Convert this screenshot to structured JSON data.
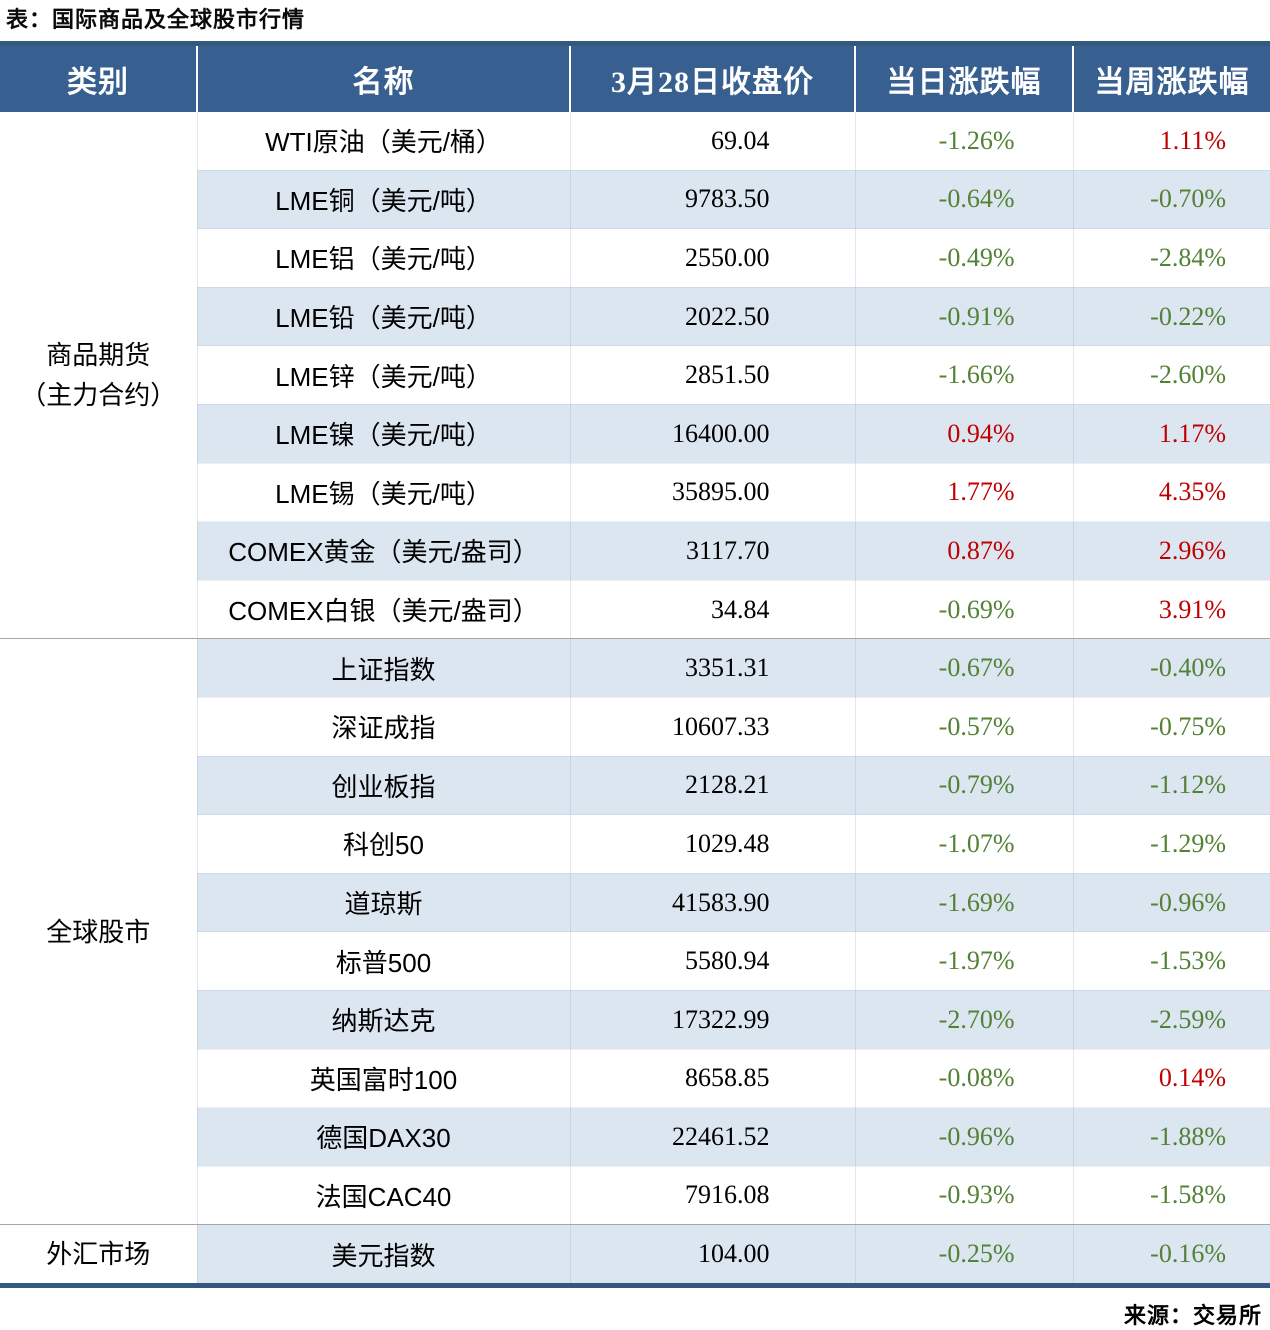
{
  "page": {
    "title": "表：国际商品及全球股市行情",
    "source": "来源：交易所"
  },
  "colors": {
    "header_bg": "#376091",
    "stripe": "#DCE6F1",
    "thick_border": "#33597F",
    "up_red": "#C00000",
    "down_green": "#538135"
  },
  "table": {
    "columns": [
      "类别",
      "名称",
      "3月28日收盘价",
      "当日涨跌幅",
      "当周涨跌幅"
    ],
    "sections": [
      {
        "category": "商品期货\n（主力合约）",
        "rows": [
          {
            "name": "WTI原油（美元/桶）",
            "close": "69.04",
            "day": "-1.26%",
            "week": "1.11%"
          },
          {
            "name": "LME铜（美元/吨）",
            "close": "9783.50",
            "day": "-0.64%",
            "week": "-0.70%"
          },
          {
            "name": "LME铝（美元/吨）",
            "close": "2550.00",
            "day": "-0.49%",
            "week": "-2.84%"
          },
          {
            "name": "LME铅（美元/吨）",
            "close": "2022.50",
            "day": "-0.91%",
            "week": "-0.22%"
          },
          {
            "name": "LME锌（美元/吨）",
            "close": "2851.50",
            "day": "-1.66%",
            "week": "-2.60%"
          },
          {
            "name": "LME镍（美元/吨）",
            "close": "16400.00",
            "day": "0.94%",
            "week": "1.17%"
          },
          {
            "name": "LME锡（美元/吨）",
            "close": "35895.00",
            "day": "1.77%",
            "week": "4.35%"
          },
          {
            "name": "COMEX黄金（美元/盎司）",
            "close": "3117.70",
            "day": "0.87%",
            "week": "2.96%"
          },
          {
            "name": "COMEX白银（美元/盎司）",
            "close": "34.84",
            "day": "-0.69%",
            "week": "3.91%"
          }
        ]
      },
      {
        "category": "全球股市",
        "rows": [
          {
            "name": "上证指数",
            "close": "3351.31",
            "day": "-0.67%",
            "week": "-0.40%"
          },
          {
            "name": "深证成指",
            "close": "10607.33",
            "day": "-0.57%",
            "week": "-0.75%"
          },
          {
            "name": "创业板指",
            "close": "2128.21",
            "day": "-0.79%",
            "week": "-1.12%"
          },
          {
            "name": "科创50",
            "close": "1029.48",
            "day": "-1.07%",
            "week": "-1.29%"
          },
          {
            "name": "道琼斯",
            "close": "41583.90",
            "day": "-1.69%",
            "week": "-0.96%"
          },
          {
            "name": "标普500",
            "close": "5580.94",
            "day": "-1.97%",
            "week": "-1.53%"
          },
          {
            "name": "纳斯达克",
            "close": "17322.99",
            "day": "-2.70%",
            "week": "-2.59%"
          },
          {
            "name": "英国富时100",
            "close": "8658.85",
            "day": "-0.08%",
            "week": "0.14%"
          },
          {
            "name": "德国DAX30",
            "close": "22461.52",
            "day": "-0.96%",
            "week": "-1.88%"
          },
          {
            "name": "法国CAC40",
            "close": "7916.08",
            "day": "-0.93%",
            "week": "-1.58%"
          }
        ]
      },
      {
        "category": "外汇市场",
        "rows": [
          {
            "name": "美元指数",
            "close": "104.00",
            "day": "-0.25%",
            "week": "-0.16%"
          }
        ]
      }
    ]
  },
  "chart_data": {
    "type": "table",
    "title": "国际商品及全球股市行情（3月28日）",
    "columns": [
      "名称",
      "3月28日收盘价",
      "当日涨跌幅",
      "当周涨跌幅"
    ],
    "rows": [
      [
        "WTI原油（美元/桶）",
        69.04,
        -1.26,
        1.11
      ],
      [
        "LME铜（美元/吨）",
        9783.5,
        -0.64,
        -0.7
      ],
      [
        "LME铝（美元/吨）",
        2550.0,
        -0.49,
        -2.84
      ],
      [
        "LME铅（美元/吨）",
        2022.5,
        -0.91,
        -0.22
      ],
      [
        "LME锌（美元/吨）",
        2851.5,
        -1.66,
        -2.6
      ],
      [
        "LME镍（美元/吨）",
        16400.0,
        0.94,
        1.17
      ],
      [
        "LME锡（美元/吨）",
        35895.0,
        1.77,
        4.35
      ],
      [
        "COMEX黄金（美元/盎司）",
        3117.7,
        0.87,
        2.96
      ],
      [
        "COMEX白银（美元/盎司）",
        34.84,
        -0.69,
        3.91
      ],
      [
        "上证指数",
        3351.31,
        -0.67,
        -0.4
      ],
      [
        "深证成指",
        10607.33,
        -0.57,
        -0.75
      ],
      [
        "创业板指",
        2128.21,
        -0.79,
        -1.12
      ],
      [
        "科创50",
        1029.48,
        -1.07,
        -1.29
      ],
      [
        "道琼斯",
        41583.9,
        -1.69,
        -0.96
      ],
      [
        "标普500",
        5580.94,
        -1.97,
        -1.53
      ],
      [
        "纳斯达克",
        17322.99,
        -2.7,
        -2.59
      ],
      [
        "英国富时100",
        8658.85,
        -0.08,
        0.14
      ],
      [
        "德国DAX30",
        22461.52,
        -0.96,
        -1.88
      ],
      [
        "法国CAC40",
        7916.08,
        -0.93,
        -1.58
      ],
      [
        "美元指数",
        104.0,
        -0.25,
        -0.16
      ]
    ]
  }
}
